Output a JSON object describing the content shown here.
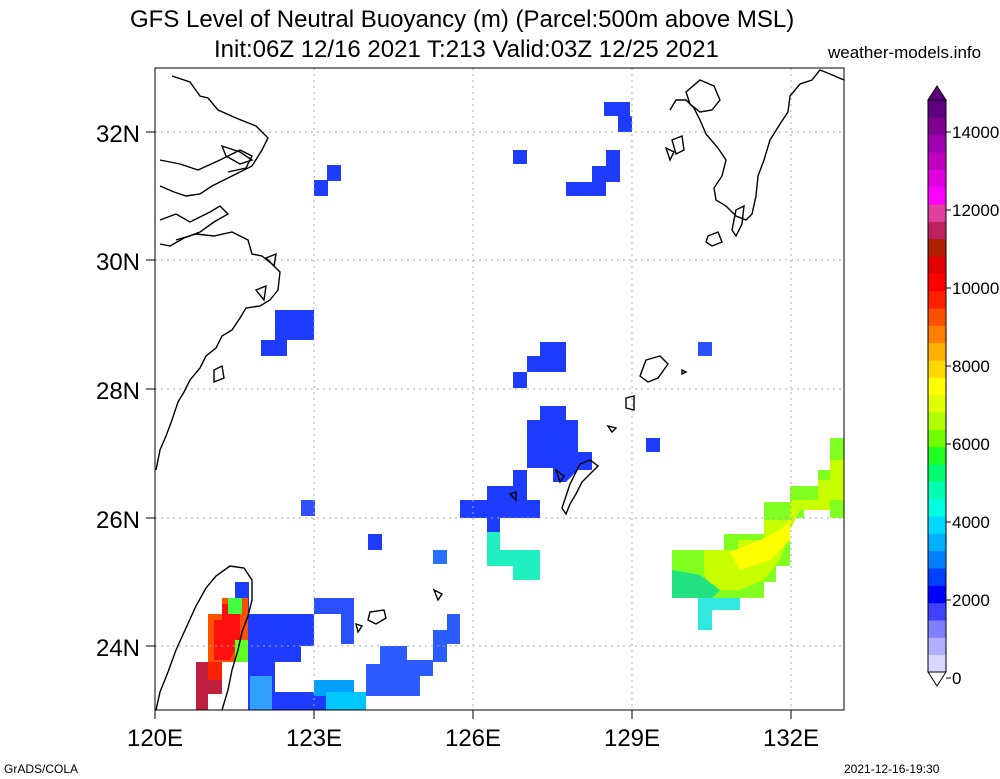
{
  "title": {
    "line1": "GFS Level of Neutral Buoyancy (m) (Parcel:500m above MSL)",
    "line2": "Init:06Z 12/16 2021 T:213 Valid:03Z 12/25 2021"
  },
  "site": "weather-models.info",
  "footer": {
    "left": "GrADS/COLA",
    "right": "2021-12-16-19:30"
  },
  "map": {
    "lon_range": [
      120,
      133
    ],
    "lat_range": [
      23,
      33
    ],
    "lat_labels": [
      "32N",
      "30N",
      "28N",
      "26N",
      "24N"
    ],
    "lon_labels": [
      "120E",
      "123E",
      "126E",
      "129E",
      "132E"
    ],
    "grid": true
  },
  "colorbar": {
    "labels": [
      "14000",
      "12000",
      "10000",
      "8000",
      "6000",
      "4000",
      "2000",
      "0"
    ],
    "colors": [
      "#d8d8ff",
      "#b0b0ff",
      "#8080ff",
      "#4040ff",
      "#0000ff",
      "#0040ff",
      "#0080ff",
      "#00b0ff",
      "#00d8ff",
      "#00ffe0",
      "#00ffb0",
      "#00ff70",
      "#20ff20",
      "#70ff00",
      "#b0ff00",
      "#e0ff00",
      "#ffff00",
      "#ffd800",
      "#ffb000",
      "#ff8000",
      "#ff5000",
      "#ff2000",
      "#ff0000",
      "#e00000",
      "#b02000",
      "#c02060",
      "#e040a0",
      "#ff00ff",
      "#e000e0",
      "#c000c0",
      "#a000b0",
      "#800090",
      "#600080"
    ]
  }
}
